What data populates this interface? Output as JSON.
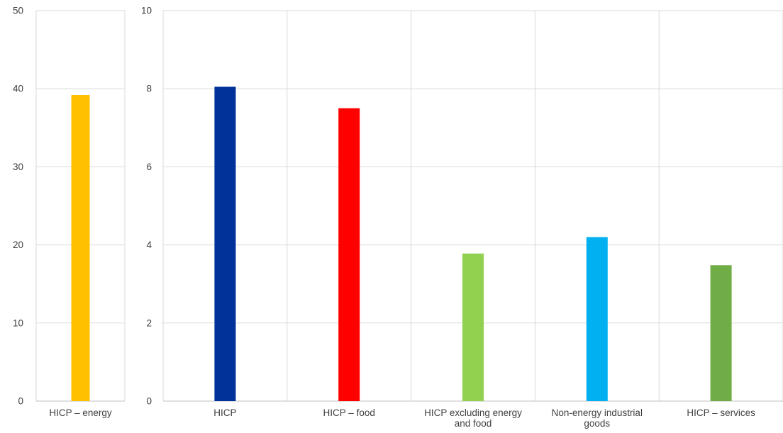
{
  "chart_data": [
    {
      "type": "bar",
      "categories": [
        "HICP – energy"
      ],
      "values": [
        39.2
      ],
      "ylim": [
        0,
        50
      ],
      "yticks": [
        0,
        10,
        20,
        30,
        40,
        50
      ],
      "colors": [
        "#FFC000"
      ],
      "grid": true
    },
    {
      "type": "bar",
      "categories": [
        "HICP",
        "HICP – food",
        "HICP excluding energy and food",
        "Non-energy industrial goods",
        "HICP – services"
      ],
      "category_lines": [
        [
          "HICP"
        ],
        [
          "HICP – food"
        ],
        [
          "HICP excluding energy",
          "and food"
        ],
        [
          "Non-energy industrial",
          "goods"
        ],
        [
          "HICP – services"
        ]
      ],
      "values": [
        8.05,
        7.5,
        3.78,
        4.2,
        3.48
      ],
      "ylim": [
        0,
        10
      ],
      "yticks": [
        0,
        2,
        4,
        6,
        8,
        10
      ],
      "colors": [
        "#003299",
        "#FF0000",
        "#92D050",
        "#00B0F0",
        "#70AD47"
      ],
      "grid": true
    }
  ]
}
